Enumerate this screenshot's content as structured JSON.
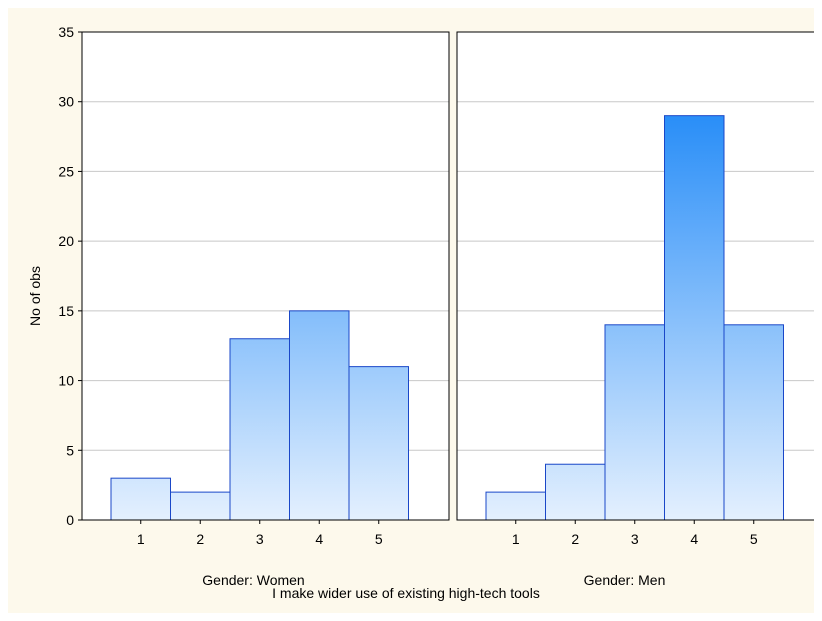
{
  "chart_data": {
    "type": "bar",
    "ylabel": "No of obs",
    "xlabel": "I make wider use of existing high-tech tools",
    "ylim": [
      0,
      35
    ],
    "yticks": [
      0,
      5,
      10,
      15,
      20,
      25,
      30,
      35
    ],
    "grid": true,
    "categories": [
      "1",
      "2",
      "3",
      "4",
      "5"
    ],
    "panels": [
      {
        "label": "Gender: Women",
        "values": [
          3,
          2,
          13,
          15,
          11
        ]
      },
      {
        "label": "Gender: Men",
        "values": [
          2,
          4,
          14,
          29,
          14
        ]
      }
    ],
    "colors": {
      "bar_top": "#2b8ff8",
      "bar_bottom": "#e4f0fe",
      "bar_stroke": "#1a47c8",
      "grid": "#c8c8c8",
      "background": "#fdf9ec"
    }
  }
}
